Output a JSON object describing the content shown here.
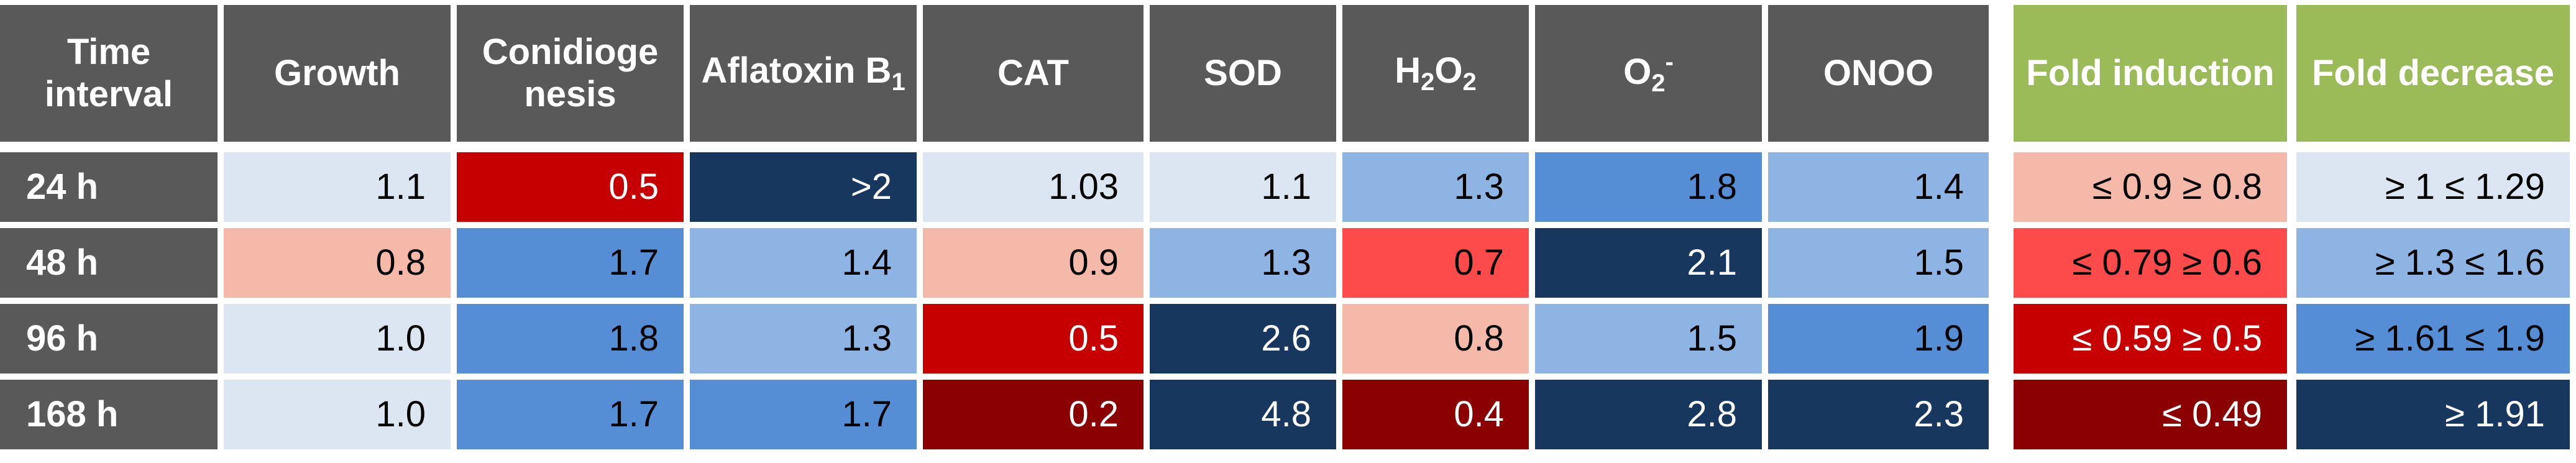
{
  "chart_data": {
    "type": "heatmap",
    "header": {
      "row_label": "Time interval",
      "columns": [
        {
          "text": "Growth"
        },
        {
          "text": "Conidioge nesis"
        },
        {
          "text": "Aflatoxin B",
          "sub": "1"
        },
        {
          "text": "CAT"
        },
        {
          "text": "SOD"
        },
        {
          "text": "H",
          "sub": "2",
          "text2": "O",
          "sub2": "2"
        },
        {
          "text": "O",
          "sub": "2",
          "sup": "-"
        },
        {
          "text": "ONOO"
        }
      ]
    },
    "rows": [
      {
        "label": "24 h",
        "values": [
          "1.1",
          "0.5",
          ">2",
          "1.03",
          "1.1",
          "1.3",
          "1.8",
          "1.4"
        ]
      },
      {
        "label": "48 h",
        "values": [
          "0.8",
          "1.7",
          "1.4",
          "0.9",
          "1.3",
          "0.7",
          "2.1",
          "1.5"
        ]
      },
      {
        "label": "96 h",
        "values": [
          "1.0",
          "1.8",
          "1.3",
          "0.5",
          "2.6",
          "0.8",
          "1.5",
          "1.9"
        ]
      },
      {
        "label": "168 h",
        "values": [
          "1.0",
          "1.7",
          "1.7",
          "0.2",
          "4.8",
          "0.4",
          "2.8",
          "2.3"
        ]
      }
    ],
    "legend": {
      "induction": {
        "title": "Fold induction",
        "items": [
          {
            "label": "≤ 0.9 ≥ 0.8",
            "color": "#f4b9a9"
          },
          {
            "label": "≤ 0.79 ≥ 0.6",
            "color": "#fd4a4a"
          },
          {
            "label": "≤ 0.59 ≥ 0.5",
            "color": "#c60000"
          },
          {
            "label": "≤ 0.49",
            "color": "#8b0000"
          }
        ]
      },
      "decrease": {
        "title": "Fold decrease",
        "items": [
          {
            "label": "≥ 1 ≤ 1.29",
            "color": "#dce6f2"
          },
          {
            "label": "≥ 1.3 ≤ 1.6",
            "color": "#8eb4e3"
          },
          {
            "label": "≥ 1.61 ≤ 1.9",
            "color": "#558ed5"
          },
          {
            "label": "≥ 1.91",
            "color": "#17375e"
          }
        ]
      }
    }
  }
}
